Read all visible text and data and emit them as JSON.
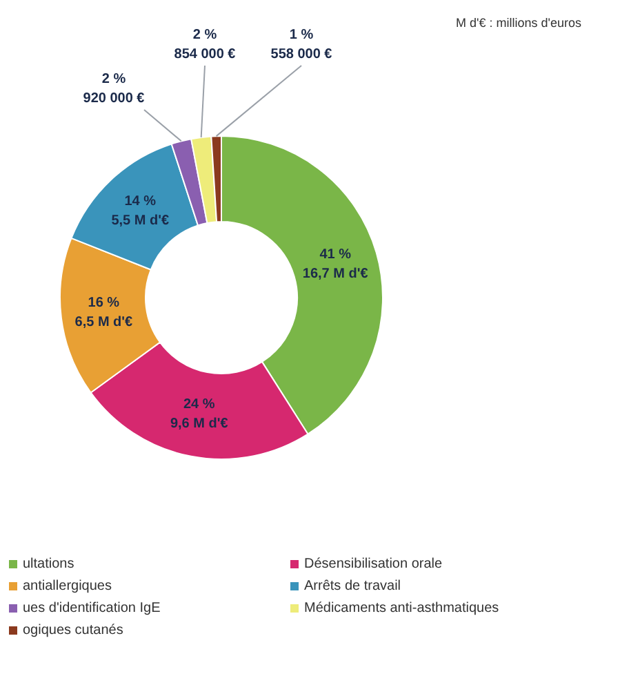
{
  "chart_data": {
    "type": "donut",
    "categories": [
      "ultations",
      "Désensibilisation orale",
      "antiallergiques",
      "Arrêts de travail",
      "ues d'identification IgE",
      "Médicaments anti-asthmatiques",
      "ogiques cutanés"
    ],
    "values": [
      41,
      24,
      16,
      14,
      2,
      2,
      1
    ],
    "colors": [
      "#7ab648",
      "#d6286f",
      "#e8a034",
      "#3a94bb",
      "#8a5fb0",
      "#eeec7a",
      "#8b3a1e"
    ],
    "value_labels": [
      "41 %\n16,7 M d'€",
      "24 %\n9,6 M d'€",
      "16 %\n6,5 M d'€",
      "14 %\n5,5 M d'€",
      "2 %\n920 000 €",
      "2 %\n854 000 €",
      "1 %\n558 000 €"
    ],
    "annotations": [
      "M d'€ : millions d'euros"
    ],
    "legend": "bottom"
  }
}
